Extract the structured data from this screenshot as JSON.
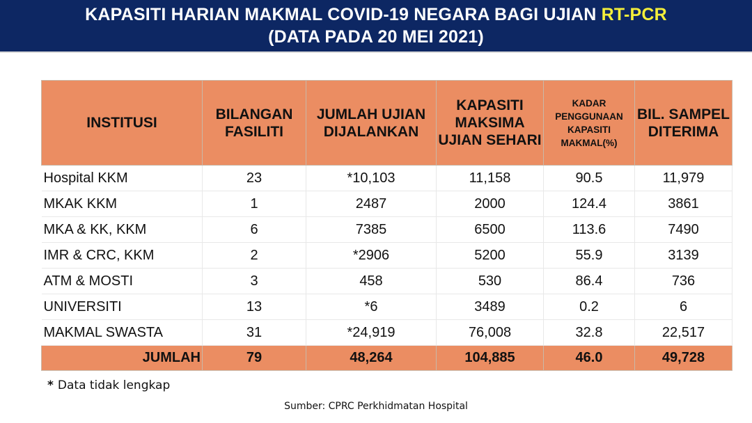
{
  "header": {
    "title_line1_main": "KAPASITI HARIAN MAKMAL COVID-19 NEGARA BAGI UJIAN ",
    "title_line1_highlight": "RT-PCR",
    "title_line2": "(DATA PADA 20 MEI 2021)",
    "background_color": "#0d2763",
    "highlight_color": "#f4ef3a"
  },
  "table": {
    "header_color": "#eb8d62",
    "columns": [
      "INSTITUSI",
      "BILANGAN FASILITI",
      "JUMLAH UJIAN DIJALANKAN",
      "KAPASITI MAKSIMA UJIAN SEHARI",
      "KADAR PENGGUNAAN KAPASITI MAKMAL(%)",
      "BIL. SAMPEL DITERIMA"
    ],
    "rows": [
      [
        "Hospital KKM",
        "23",
        "*10,103",
        "11,158",
        "90.5",
        "11,979"
      ],
      [
        "MKAK KKM",
        "1",
        "2487",
        "2000",
        "124.4",
        "3861"
      ],
      [
        "MKA & KK, KKM",
        "6",
        "7385",
        "6500",
        "113.6",
        "7490"
      ],
      [
        "IMR & CRC, KKM",
        "2",
        "*2906",
        "5200",
        "55.9",
        "3139"
      ],
      [
        "ATM & MOSTI",
        "3",
        "458",
        "530",
        "86.4",
        "736"
      ],
      [
        "UNIVERSITI",
        "13",
        "*6",
        "3489",
        "0.2",
        "6"
      ],
      [
        "MAKMAL SWASTA",
        "31",
        "*24,919",
        "76,008",
        "32.8",
        "22,517"
      ]
    ],
    "total": [
      "JUMLAH",
      "79",
      "48,264",
      "104,885",
      "46.0",
      "49,728"
    ]
  },
  "footnote": {
    "star": "*",
    "text": "Data tidak lengkap"
  },
  "source": "Sumber: CPRC Perkhidmatan Hospital"
}
